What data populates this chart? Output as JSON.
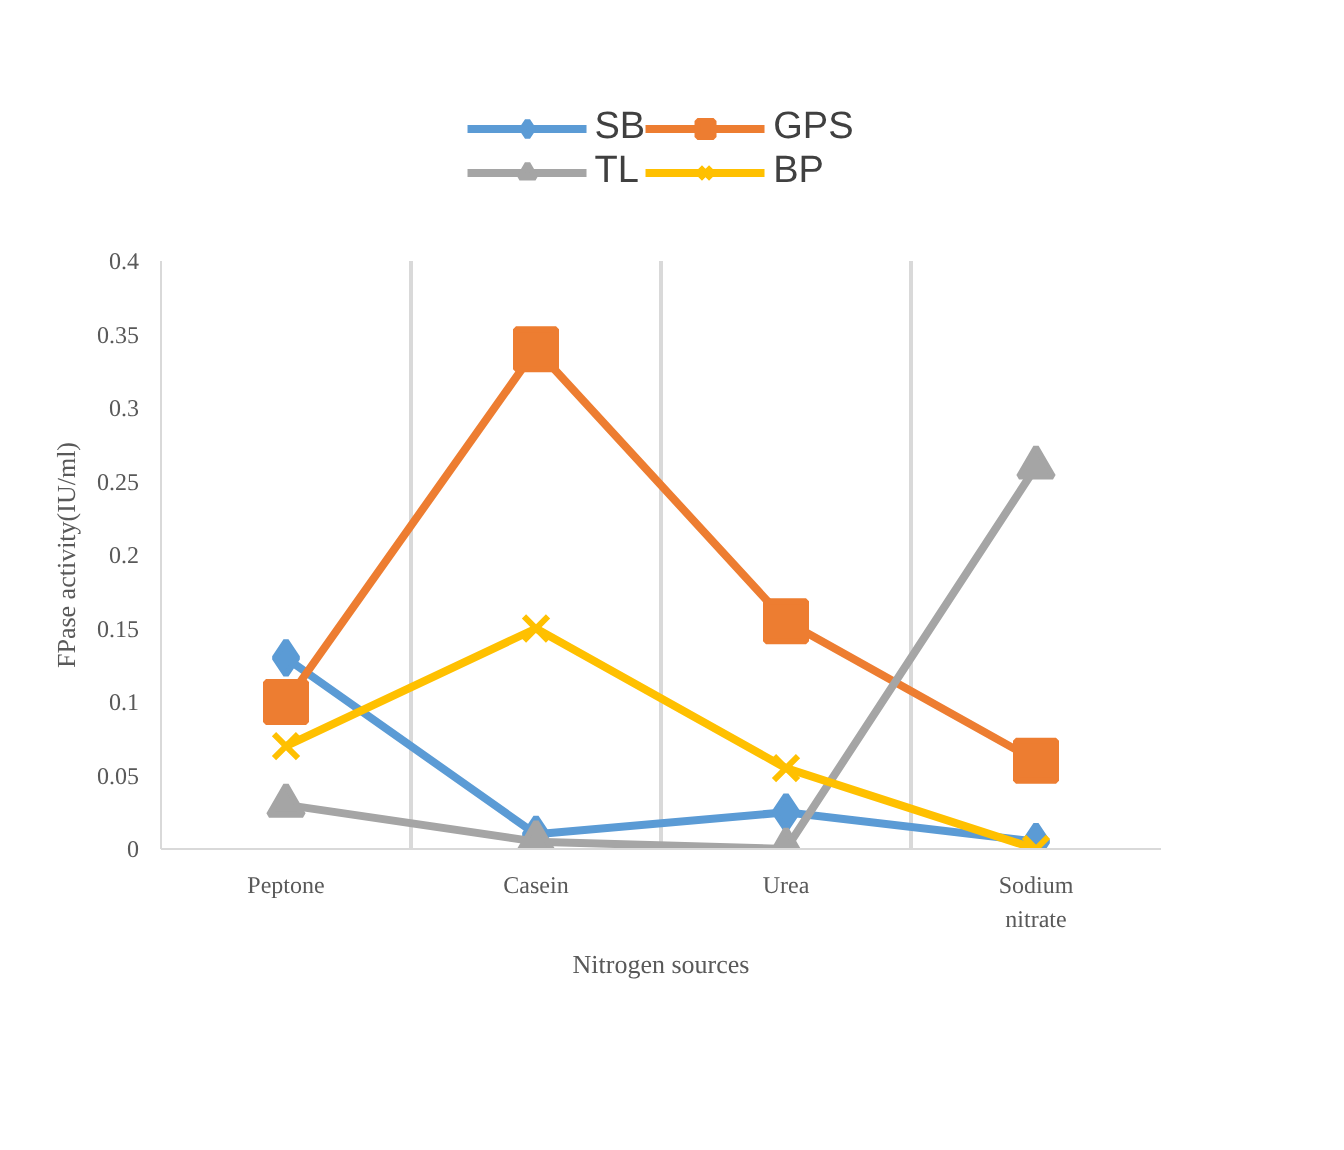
{
  "chart_data": {
    "type": "line",
    "xlabel": "Nitrogen sources",
    "ylabel": "FPase activity(IU/ml)",
    "categories": [
      "Peptone",
      "Casein",
      "Urea",
      "Sodium\nnitrate"
    ],
    "series": [
      {
        "name": "SB",
        "color": "#5b9bd5",
        "marker": "diamond",
        "values": [
          0.13,
          0.01,
          0.025,
          0.005
        ]
      },
      {
        "name": "GPS",
        "color": "#ed7d31",
        "marker": "square",
        "values": [
          0.1,
          0.34,
          0.155,
          0.06
        ]
      },
      {
        "name": "TL",
        "color": "#a5a5a5",
        "marker": "triangle",
        "values": [
          0.03,
          0.005,
          0,
          0.26
        ]
      },
      {
        "name": "BP",
        "color": "#ffc000",
        "marker": "cross",
        "values": [
          0.07,
          0.15,
          0.055,
          0
        ]
      }
    ],
    "ylim": [
      0,
      0.4
    ],
    "yticks": [
      0,
      0.05,
      0.1,
      0.15,
      0.2,
      0.25,
      0.3,
      0.35,
      0.4
    ],
    "grid": "x",
    "legend": "top"
  }
}
